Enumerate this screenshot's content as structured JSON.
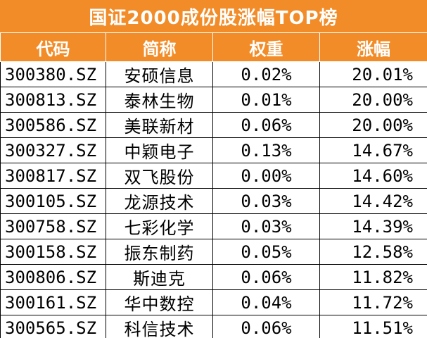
{
  "title": "国证2000成份股涨幅TOP榜",
  "columns": {
    "code": "代码",
    "name": "简称",
    "weight": "权重",
    "change": "涨幅"
  },
  "rows": [
    {
      "code": "300380.SZ",
      "name": "安硕信息",
      "weight": "0.02%",
      "change": "20.01%"
    },
    {
      "code": "300813.SZ",
      "name": "泰林生物",
      "weight": "0.01%",
      "change": "20.00%"
    },
    {
      "code": "300586.SZ",
      "name": "美联新材",
      "weight": "0.06%",
      "change": "20.00%"
    },
    {
      "code": "300327.SZ",
      "name": "中颖电子",
      "weight": "0.13%",
      "change": "14.67%"
    },
    {
      "code": "300817.SZ",
      "name": "双飞股份",
      "weight": "0.00%",
      "change": "14.60%"
    },
    {
      "code": "300105.SZ",
      "name": "龙源技术",
      "weight": "0.03%",
      "change": "14.42%"
    },
    {
      "code": "300758.SZ",
      "name": "七彩化学",
      "weight": "0.03%",
      "change": "14.39%"
    },
    {
      "code": "300158.SZ",
      "name": "振东制药",
      "weight": "0.05%",
      "change": "12.58%"
    },
    {
      "code": "300806.SZ",
      "name": "斯迪克",
      "weight": "0.06%",
      "change": "11.82%"
    },
    {
      "code": "300161.SZ",
      "name": "华中数控",
      "weight": "0.04%",
      "change": "11.72%"
    },
    {
      "code": "300565.SZ",
      "name": "科信技术",
      "weight": "0.06%",
      "change": "11.51%"
    }
  ],
  "colors": {
    "header_bg": "#f28c28",
    "header_text": "#ffffff",
    "cell_text": "#000000",
    "grid_line": "#000000"
  }
}
